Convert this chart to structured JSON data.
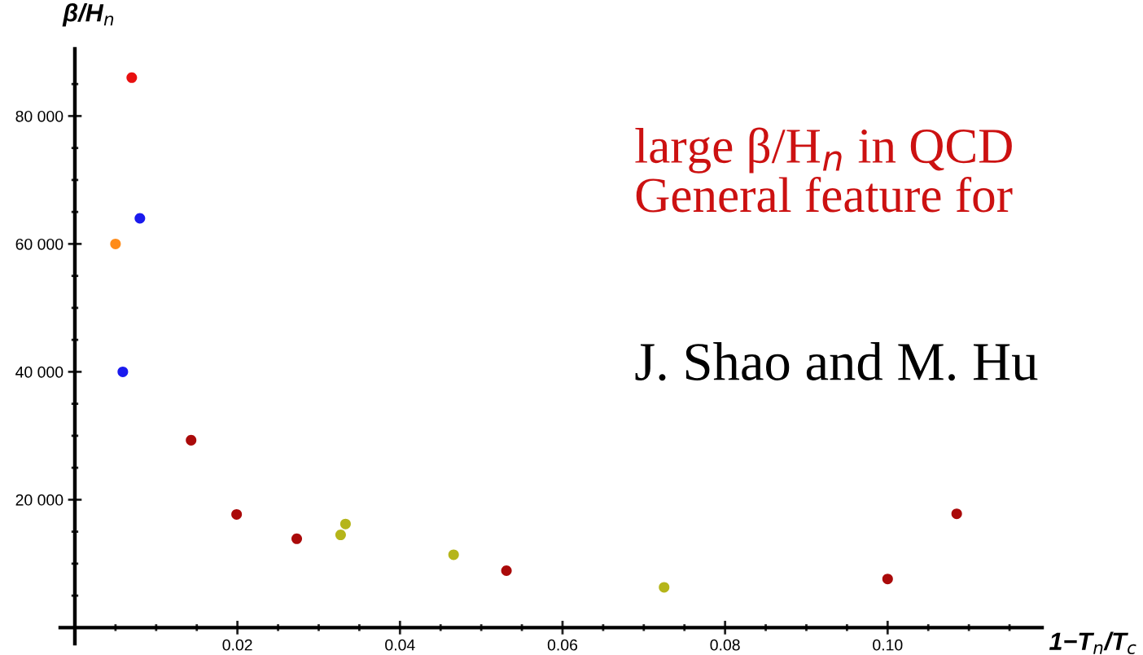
{
  "chart_data": {
    "type": "scatter",
    "xlabel": "1−T$_{n}$/T$_{c}$",
    "ylabel": "β/H$_{n}$",
    "series": [
      {
        "color": "#e81010",
        "x": [
          0.007
        ],
        "values": [
          86000
        ]
      },
      {
        "color": "#1a1aee",
        "x": [
          0.008,
          0.0059
        ],
        "values": [
          64000,
          40000
        ]
      },
      {
        "color": "#ff8c1a",
        "x": [
          0.005
        ],
        "values": [
          60000
        ]
      },
      {
        "color": "#aa0a0a",
        "x": [
          0.0143,
          0.0199,
          0.0273,
          0.0531,
          0.1,
          0.1085
        ],
        "values": [
          29300,
          17700,
          13900,
          8900,
          7600,
          17800
        ]
      },
      {
        "color": "#b5b51a",
        "x": [
          0.0327,
          0.0333,
          0.0466,
          0.0725
        ],
        "values": [
          14500,
          16200,
          11400,
          6300
        ]
      }
    ],
    "xlim": [
      -0.0018,
      0.119
    ],
    "xticks": [
      {
        "value": 0.005,
        "label": null
      },
      {
        "value": 0.01,
        "label": null
      },
      {
        "value": 0.015,
        "label": null
      },
      {
        "value": 0.02,
        "label": "0.02"
      },
      {
        "value": 0.025,
        "label": null
      },
      {
        "value": 0.03,
        "label": null
      },
      {
        "value": 0.035,
        "label": null
      },
      {
        "value": 0.04,
        "label": "0.04"
      },
      {
        "value": 0.045,
        "label": null
      },
      {
        "value": 0.05,
        "label": null
      },
      {
        "value": 0.055,
        "label": null
      },
      {
        "value": 0.06,
        "label": "0.06"
      },
      {
        "value": 0.065,
        "label": null
      },
      {
        "value": 0.07,
        "label": null
      },
      {
        "value": 0.075,
        "label": null
      },
      {
        "value": 0.08,
        "label": "0.08"
      },
      {
        "value": 0.085,
        "label": null
      },
      {
        "value": 0.09,
        "label": null
      },
      {
        "value": 0.095,
        "label": null
      },
      {
        "value": 0.1,
        "label": "0.10"
      },
      {
        "value": 0.105,
        "label": null
      },
      {
        "value": 0.11,
        "label": null
      },
      {
        "value": 0.115,
        "label": null
      }
    ],
    "ylim": [
      -2500,
      90500
    ],
    "yticks": [
      {
        "value": 5000,
        "label": null
      },
      {
        "value": 10000,
        "label": null
      },
      {
        "value": 15000,
        "label": null
      },
      {
        "value": 20000,
        "label": "20 000"
      },
      {
        "value": 25000,
        "label": null
      },
      {
        "value": 30000,
        "label": null
      },
      {
        "value": 35000,
        "label": null
      },
      {
        "value": 40000,
        "label": "40 000"
      },
      {
        "value": 45000,
        "label": null
      },
      {
        "value": 50000,
        "label": null
      },
      {
        "value": 55000,
        "label": null
      },
      {
        "value": 60000,
        "label": "60 000"
      },
      {
        "value": 65000,
        "label": null
      },
      {
        "value": 70000,
        "label": null
      },
      {
        "value": 75000,
        "label": null
      },
      {
        "value": 80000,
        "label": "80 000"
      },
      {
        "value": 85000,
        "label": null
      }
    ],
    "annotations": [
      "large β/H$_{n}$ in QCD",
      "General feature for",
      "J. Shao and M. Hu"
    ],
    "marker": "circle",
    "grid": false,
    "legend": false
  }
}
